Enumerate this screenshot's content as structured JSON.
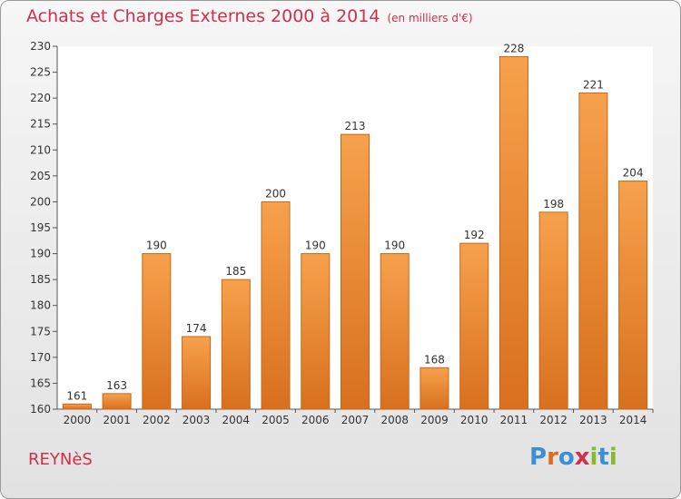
{
  "title": "Achats et Charges Externes 2000 à 2014",
  "subtitle": "(en milliers d'€)",
  "place": "REYNèS",
  "logo": {
    "text": "Proxiti",
    "letters": [
      {
        "ch": "P",
        "color": "#3a8fd6"
      },
      {
        "ch": "r",
        "color": "#e06a1b"
      },
      {
        "ch": "o",
        "color": "#3a8fd6"
      },
      {
        "ch": "x",
        "color": "#d0304d"
      },
      {
        "ch": "i",
        "color": "#8ab82c"
      },
      {
        "ch": "t",
        "color": "#3a8fd6"
      },
      {
        "ch": "i",
        "color": "#8ab82c"
      }
    ]
  },
  "chart_data": {
    "type": "bar",
    "categories": [
      "2000",
      "2001",
      "2002",
      "2003",
      "2004",
      "2005",
      "2006",
      "2007",
      "2008",
      "2009",
      "2010",
      "2011",
      "2012",
      "2013",
      "2014"
    ],
    "values": [
      161,
      163,
      190,
      174,
      185,
      200,
      190,
      213,
      190,
      168,
      192,
      228,
      198,
      221,
      204
    ],
    "ylim": [
      160,
      230
    ],
    "ytick_step": 5,
    "grid": false,
    "bar_color_top": "#f7a14c",
    "bar_color_bottom": "#d8701e"
  }
}
